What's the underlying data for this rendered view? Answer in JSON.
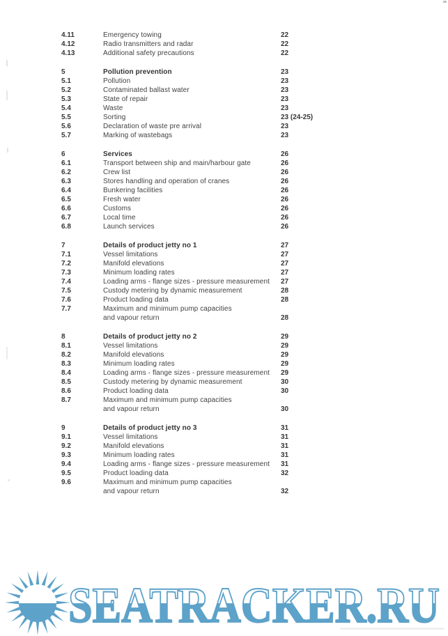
{
  "watermark": {
    "text": "SEATRACKER.RU",
    "color": "#5da2c9"
  },
  "toc": {
    "groups": [
      {
        "items": [
          {
            "num": "4.11",
            "title": "Emergency towing",
            "page": "22"
          },
          {
            "num": "4.12",
            "title": "Radio transmitters and radar",
            "page": "22"
          },
          {
            "num": "4.13",
            "title": "Additional safety precautions",
            "page": "22"
          }
        ]
      },
      {
        "header": {
          "num": "5",
          "title": "Pollution prevention",
          "page": "23"
        },
        "items": [
          {
            "num": "5.1",
            "title": "Pollution",
            "page": "23"
          },
          {
            "num": "5.2",
            "title": "Contaminated ballast water",
            "page": "23"
          },
          {
            "num": "5.3",
            "title": "State of repair",
            "page": "23"
          },
          {
            "num": "5.4",
            "title": "Waste",
            "page": "23"
          },
          {
            "num": "5.5",
            "title": "Sorting",
            "page": "23 (24-25)"
          },
          {
            "num": "5.6",
            "title": "Declaration of waste pre arrival",
            "page": "23"
          },
          {
            "num": "5.7",
            "title": "Marking of wastebags",
            "page": "23"
          }
        ]
      },
      {
        "header": {
          "num": "6",
          "title": "Services",
          "page": "26"
        },
        "items": [
          {
            "num": "6.1",
            "title": "Transport between ship and main/harbour gate",
            "page": "26"
          },
          {
            "num": "6.2",
            "title": "Crew list",
            "page": "26"
          },
          {
            "num": "6.3",
            "title": "Stores handling and operation of cranes",
            "page": "26"
          },
          {
            "num": "6.4",
            "title": "Bunkering facilities",
            "page": "26"
          },
          {
            "num": "6.5",
            "title": "Fresh water",
            "page": "26"
          },
          {
            "num": "6.6",
            "title": "Customs",
            "page": "26"
          },
          {
            "num": "6.7",
            "title": "Local time",
            "page": "26"
          },
          {
            "num": "6.8",
            "title": "Launch services",
            "page": "26"
          }
        ]
      },
      {
        "header": {
          "num": "7",
          "title": "Details of product jetty no 1",
          "page": "27"
        },
        "items": [
          {
            "num": "7.1",
            "title": "Vessel limitations",
            "page": "27"
          },
          {
            "num": "7.2",
            "title": "Manifold elevations",
            "page": "27"
          },
          {
            "num": "7.3",
            "title": "Minimum loading rates",
            "page": "27"
          },
          {
            "num": "7.4",
            "title": "Loading arms - flange sizes - pressure measurement",
            "page": "27"
          },
          {
            "num": "7.5",
            "title": "Custody metering by dynamic measurement",
            "page": "28"
          },
          {
            "num": "7.6",
            "title": "Product loading data",
            "page": "28"
          },
          {
            "num": "7.7",
            "title": "Maximum and minimum pump capacities",
            "title2": "and vapour return",
            "page": "28"
          }
        ]
      },
      {
        "header": {
          "num": "8",
          "title": "Details of product jetty no 2",
          "page": "29"
        },
        "items": [
          {
            "num": "8.1",
            "title": "Vessel limitations",
            "page": "29"
          },
          {
            "num": "8.2",
            "title": "Manifold elevations",
            "page": "29"
          },
          {
            "num": "8.3",
            "title": "Minimum loading rates",
            "page": "29"
          },
          {
            "num": "8.4",
            "title": "Loading arms - flange sizes - pressure measurement",
            "page": "29"
          },
          {
            "num": "8.5",
            "title": "Custody metering by dynamic measurement",
            "page": "30"
          },
          {
            "num": "8.6",
            "title": "Product loading data",
            "page": "30"
          },
          {
            "num": "8.7",
            "title": "Maximum and minimum pump capacities",
            "title2": "and vapour return",
            "page": "30"
          }
        ]
      },
      {
        "header": {
          "num": "9",
          "title": "Details of product jetty no 3",
          "page": "31"
        },
        "items": [
          {
            "num": "9.1",
            "title": "Vessel limitations",
            "page": "31"
          },
          {
            "num": "9.2",
            "title": "Manifold elevations",
            "page": "31"
          },
          {
            "num": "9.3",
            "title": "Minimum loading rates",
            "page": "31"
          },
          {
            "num": "9.4",
            "title": "Loading arms - flange sizes - pressure measurement",
            "page": "31"
          },
          {
            "num": "9.5",
            "title": "Product loading data",
            "page": "32"
          },
          {
            "num": "9.6",
            "title": "Maximum and minimum pump capacities",
            "title2": "and vapour return",
            "page": "32"
          }
        ]
      }
    ]
  }
}
